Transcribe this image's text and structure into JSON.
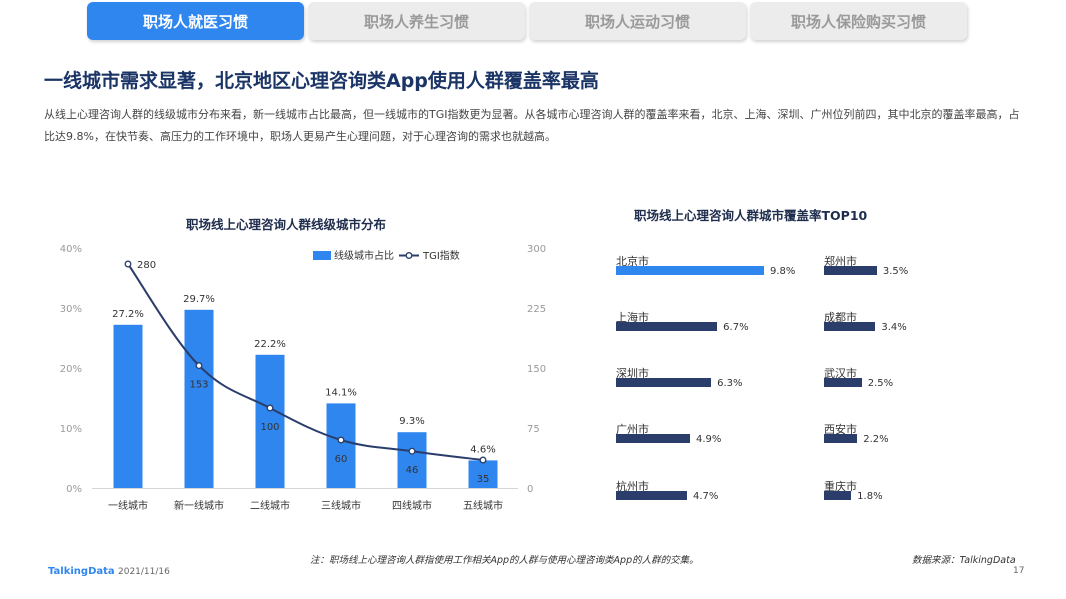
{
  "tabs": [
    {
      "label": "职场人就医习惯",
      "active": true
    },
    {
      "label": "职场人养生习惯",
      "active": false
    },
    {
      "label": "职场人运动习惯",
      "active": false
    },
    {
      "label": "职场人保险购买习惯",
      "active": false
    }
  ],
  "headline": "一线城市需求显著，北京地区心理咨询类App使用人群覆盖率最高",
  "description": "从线上心理咨询人群的线级城市分布来看，新一线城市占比最高，但一线城市的TGI指数更为显著。从各城市心理咨询人群的覆盖率来看，北京、上海、深圳、广州位列前四，其中北京的覆盖率最高，占比达9.8%，在快节奏、高压力的工作环境中，职场人更易产生心理问题，对于心理咨询的需求也就越高。",
  "chart_data": [
    {
      "type": "bar",
      "title": "职场线上心理咨询人群线级城市分布",
      "categories": [
        "一线城市",
        "新一线城市",
        "二线城市",
        "三线城市",
        "四线城市",
        "五线城市"
      ],
      "series": [
        {
          "name": "线级城市占比",
          "type": "bar",
          "axis": "left",
          "values": [
            27.2,
            29.7,
            22.2,
            14.1,
            9.3,
            4.6
          ],
          "labels": [
            "27.2%",
            "29.7%",
            "22.2%",
            "14.1%",
            "9.3%",
            "4.6%"
          ],
          "color": "#2f86ef"
        },
        {
          "name": "TGI指数",
          "type": "line",
          "axis": "right",
          "values": [
            280,
            153,
            100,
            60,
            46,
            35
          ],
          "color": "#2a3d6b"
        }
      ],
      "y_left": {
        "min": 0,
        "max": 40,
        "ticks": [
          "0%",
          "10%",
          "20%",
          "30%",
          "40%"
        ]
      },
      "y_right": {
        "min": 0,
        "max": 300,
        "ticks": [
          "0",
          "75",
          "150",
          "225",
          "300"
        ]
      },
      "legend": "top-right",
      "grid": false
    },
    {
      "type": "bar",
      "orientation": "horizontal",
      "title": "职场线上心理咨询人群城市覆盖率TOP10",
      "categories": [
        "北京市",
        "上海市",
        "深圳市",
        "广州市",
        "杭州市",
        "郑州市",
        "成都市",
        "武汉市",
        "西安市",
        "重庆市"
      ],
      "values": [
        9.8,
        6.7,
        6.3,
        4.9,
        4.7,
        3.5,
        3.4,
        2.5,
        2.2,
        1.8
      ],
      "labels": [
        "9.8%",
        "6.7%",
        "6.3%",
        "4.9%",
        "4.7%",
        "3.5%",
        "3.4%",
        "2.5%",
        "2.2%",
        "1.8%"
      ],
      "max": 9.8,
      "colors": {
        "top": "#2f86ef",
        "rest": "#2a3d6b"
      }
    }
  ],
  "footnote": "注：职场线上心理咨询人群指使用工作相关App的人群与使用心理咨询类App的人群的交集。",
  "source": "数据来源：TalkingData",
  "brand": "TalkingData",
  "date": "2021/11/16",
  "page_number": "17"
}
